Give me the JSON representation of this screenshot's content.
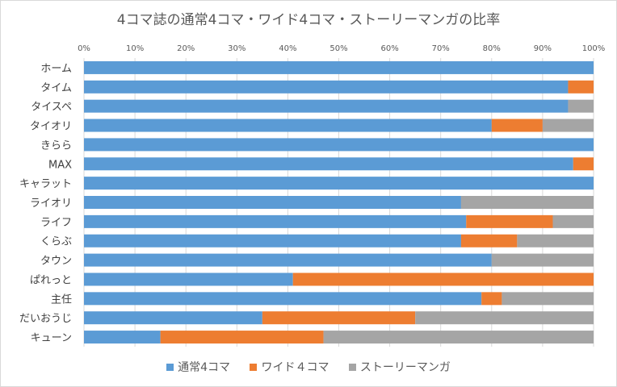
{
  "chart_data": {
    "type": "bar",
    "orientation": "horizontal",
    "stacked": "percent",
    "title": "4コマ誌の通常4コマ・ワイド4コマ・ストーリーマンガの比率",
    "xlim": [
      0,
      100
    ],
    "x_ticks": [
      "0%",
      "10%",
      "20%",
      "30%",
      "40%",
      "50%",
      "60%",
      "70%",
      "80%",
      "90%",
      "100%"
    ],
    "grid": true,
    "legend_position": "bottom",
    "categories": [
      "ホーム",
      "タイム",
      "タイスペ",
      "タイオリ",
      "きらら",
      "MAX",
      "キャラット",
      "ライオリ",
      "ライフ",
      "くらぶ",
      "タウン",
      "ぱれっと",
      "主任",
      "だいおうじ",
      "キューン"
    ],
    "series": [
      {
        "name": "通常4コマ",
        "color": "#5b9bd5",
        "values": [
          100,
          95,
          95,
          80,
          100,
          96,
          100,
          74,
          75,
          74,
          80,
          41,
          78,
          35,
          15
        ]
      },
      {
        "name": "ワイド４コマ",
        "color": "#ed7d31",
        "values": [
          0,
          5,
          0,
          10,
          0,
          4,
          0,
          0,
          17,
          11,
          0,
          59,
          4,
          30,
          32
        ]
      },
      {
        "name": "ストーリーマンガ",
        "color": "#a5a5a5",
        "values": [
          0,
          0,
          5,
          10,
          0,
          0,
          0,
          26,
          8,
          15,
          20,
          0,
          18,
          35,
          53
        ]
      }
    ]
  }
}
